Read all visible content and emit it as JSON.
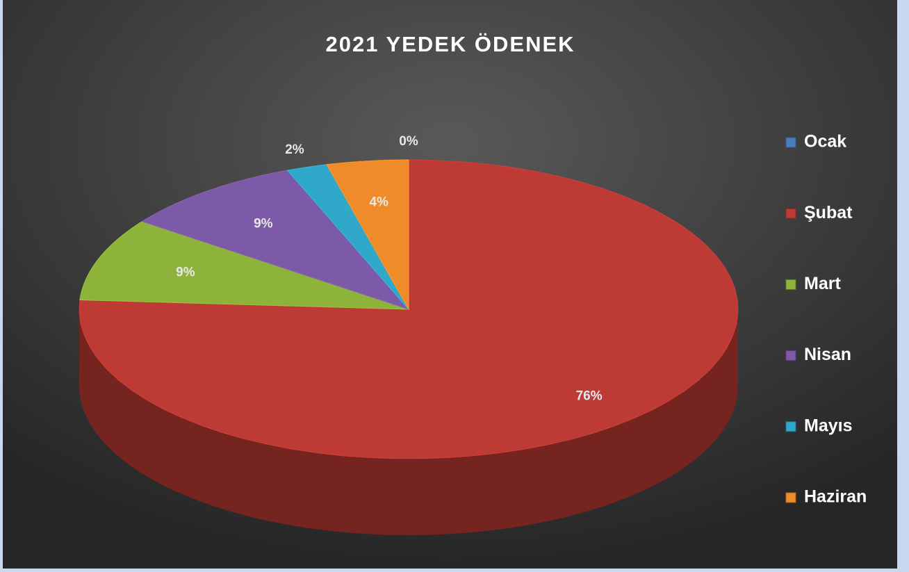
{
  "chart_data": {
    "type": "pie",
    "title": "2021 YEDEK ÖDENEK",
    "categories": [
      "Ocak",
      "Şubat",
      "Mart",
      "Nisan",
      "Mayıs",
      "Haziran"
    ],
    "values": [
      0,
      76,
      9,
      9,
      2,
      4
    ],
    "value_labels": [
      "0%",
      "76%",
      "9%",
      "9%",
      "2%",
      "4%"
    ],
    "colors": [
      "#4a7ebb",
      "#be3a34",
      "#8db33a",
      "#7d5aa8",
      "#2fa8c9",
      "#f08b2a"
    ],
    "legend": "right"
  }
}
